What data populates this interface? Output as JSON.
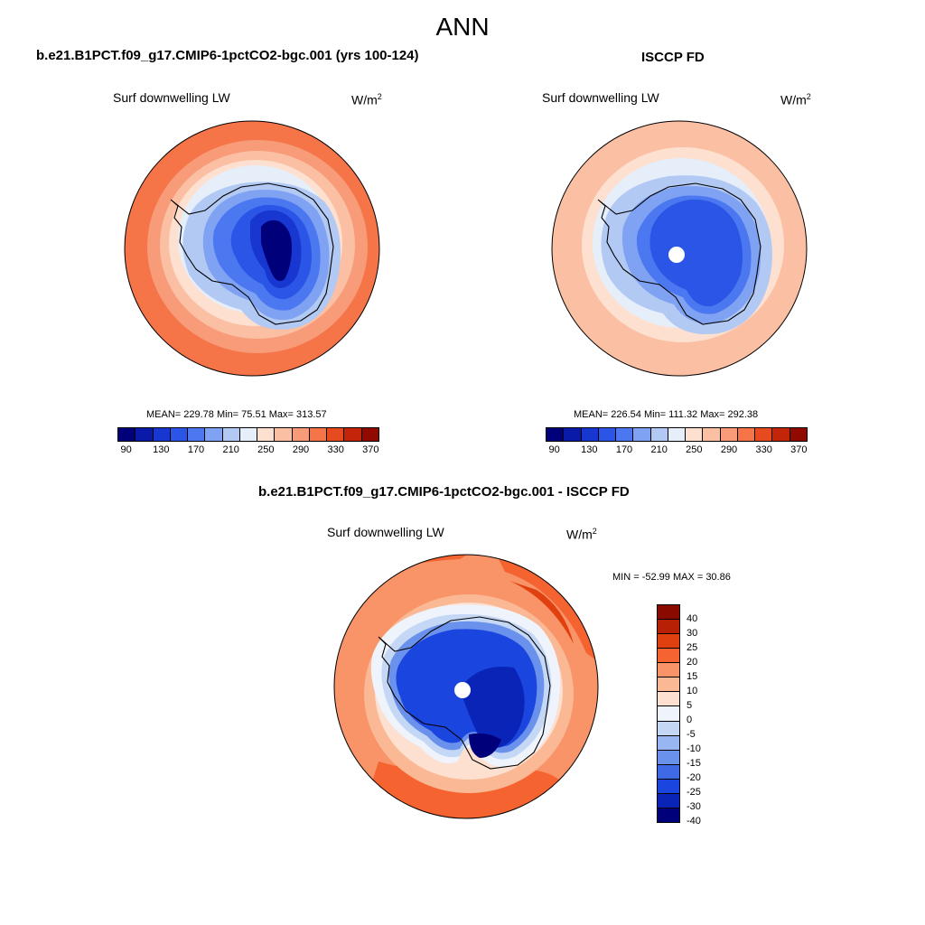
{
  "title": "ANN",
  "panels": [
    {
      "title": "b.e21.B1PCT.f09_g17.CMIP6-1pctCO2-bgc.001 (yrs 100-124)",
      "subtitle": "Surf downwelling LW",
      "units_base": "W/m",
      "units_exp": "2",
      "stats": "MEAN= 229.78  Min=  75.51  Max= 313.57",
      "mean": 229.78,
      "min": 75.51,
      "max": 313.57
    },
    {
      "title": "ISCCP FD",
      "subtitle": "Surf downwelling LW",
      "units_base": "W/m",
      "units_exp": "2",
      "stats": "MEAN= 226.54  Min= 111.32  Max= 292.38",
      "mean": 226.54,
      "min": 111.32,
      "max": 292.38
    },
    {
      "title": "b.e21.B1PCT.f09_g17.CMIP6-1pctCO2-bgc.001 - ISCCP FD",
      "subtitle": "Surf downwelling LW",
      "units_base": "W/m",
      "units_exp": "2",
      "stats": "MIN = -52.99 MAX =  30.86",
      "min": -52.99,
      "max": 30.86
    }
  ],
  "colorbar_abs": {
    "colors": [
      "#00007a",
      "#0a1aa8",
      "#1737d0",
      "#2a55e6",
      "#4b78f0",
      "#7fa2f2",
      "#b2c9f4",
      "#e6eefa",
      "#fde0cf",
      "#fbbfa3",
      "#f89b78",
      "#f57448",
      "#e84a1f",
      "#c42408",
      "#900a00"
    ],
    "ticks": [
      "90",
      "130",
      "170",
      "210",
      "250",
      "290",
      "330",
      "370"
    ]
  },
  "colorbar_diff": {
    "colors": [
      "#8b0a00",
      "#b82006",
      "#e0400f",
      "#f56430",
      "#f89468",
      "#fbb894",
      "#fde0cf",
      "#eef3fc",
      "#c4d7f5",
      "#98b6f1",
      "#6a91ec",
      "#3e6ae6",
      "#1a45df",
      "#0a24b8",
      "#00007a"
    ],
    "ticks": [
      "40",
      "30",
      "25",
      "20",
      "15",
      "10",
      "5",
      "0",
      "-5",
      "-10",
      "-15",
      "-20",
      "-25",
      "-30",
      "-40"
    ]
  }
}
